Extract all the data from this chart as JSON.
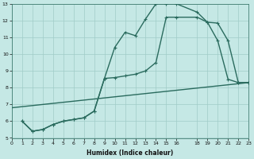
{
  "xlabel": "Humidex (Indice chaleur)",
  "xlim": [
    0,
    23
  ],
  "ylim": [
    5,
    13
  ],
  "yticks": [
    5,
    6,
    7,
    8,
    9,
    10,
    11,
    12,
    13
  ],
  "xticks": [
    0,
    1,
    2,
    3,
    4,
    5,
    6,
    7,
    8,
    9,
    10,
    11,
    12,
    13,
    14,
    15,
    16,
    18,
    19,
    20,
    21,
    22,
    23
  ],
  "bg_color": "#c5e8e5",
  "grid_color": "#a0ccc8",
  "line_color": "#2a6b5e",
  "line1_x": [
    1,
    2,
    3,
    4,
    5,
    6,
    7,
    8,
    9,
    10,
    11,
    12,
    13,
    14,
    15,
    16,
    18,
    19,
    20,
    21,
    22,
    23
  ],
  "line1_y": [
    6.0,
    5.4,
    5.5,
    5.8,
    6.0,
    6.1,
    6.2,
    6.6,
    8.55,
    10.4,
    11.3,
    11.1,
    12.1,
    13.0,
    13.0,
    13.0,
    12.5,
    11.9,
    10.8,
    8.5,
    8.3,
    8.3
  ],
  "line2_x": [
    1,
    2,
    3,
    4,
    5,
    6,
    7,
    8,
    9,
    10,
    11,
    12,
    13,
    14,
    15,
    16,
    18,
    19,
    20,
    21,
    22,
    23
  ],
  "line2_y": [
    6.0,
    5.4,
    5.5,
    5.8,
    6.0,
    6.1,
    6.2,
    6.6,
    8.55,
    8.6,
    8.7,
    8.8,
    9.0,
    9.5,
    12.2,
    12.2,
    12.2,
    11.9,
    11.85,
    10.8,
    8.3,
    8.3
  ],
  "line3_x": [
    0,
    23
  ],
  "line3_y": [
    6.8,
    8.3
  ],
  "marker_size": 3.0,
  "linewidth": 1.0
}
